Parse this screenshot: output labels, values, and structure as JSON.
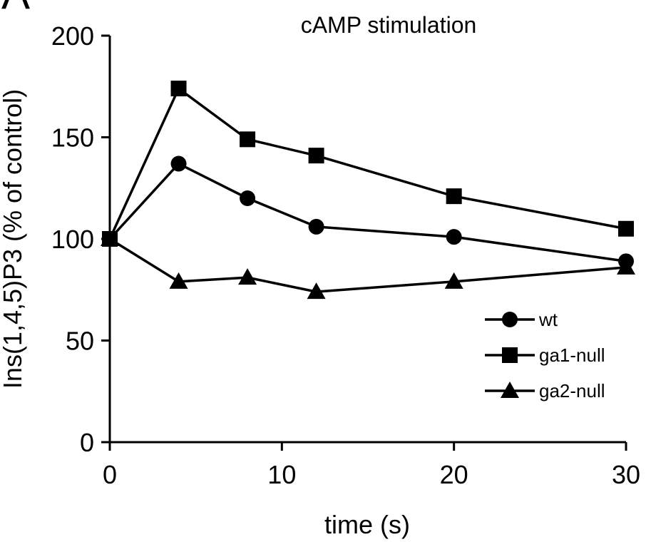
{
  "panel_label": "A",
  "chart_data": {
    "type": "line",
    "title": "cAMP stimulation",
    "xlabel": "time (s)",
    "ylabel": "Ins(1,4,5)P3 (% of control)",
    "xlim": [
      0,
      30
    ],
    "ylim": [
      0,
      200
    ],
    "xticks": [
      0,
      10,
      20,
      30
    ],
    "yticks": [
      0,
      50,
      100,
      150,
      200
    ],
    "grid": false,
    "legend_position": "bottom-right",
    "x": [
      0,
      4,
      8,
      12,
      20,
      30
    ],
    "series": [
      {
        "name": "wt",
        "marker": "circle",
        "color": "#000000",
        "values": [
          100,
          137,
          120,
          106,
          101,
          89
        ]
      },
      {
        "name": "ga1-null",
        "marker": "square",
        "color": "#000000",
        "values": [
          100,
          174,
          149,
          141,
          121,
          105
        ]
      },
      {
        "name": "ga2-null",
        "marker": "triangle",
        "color": "#000000",
        "values": [
          100,
          79,
          81,
          74,
          79,
          86
        ]
      }
    ]
  }
}
